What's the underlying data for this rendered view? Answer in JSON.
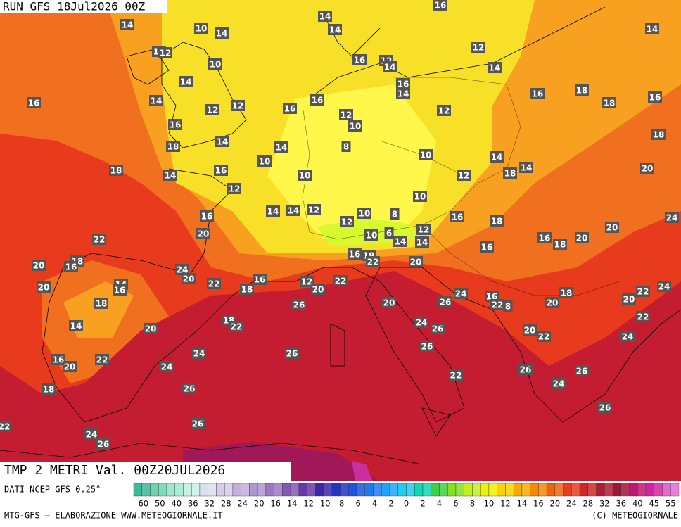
{
  "header": {
    "run": "RUN GFS 18Jul2026 00Z",
    "title": "TMP 2 METRI Val. 00Z20JUL2026",
    "source": "DATI NCEP GFS 0.25°",
    "credit": "MTG-GFS — ELABORAZIONE WWW.METEOGIORNALE.IT",
    "copyright": "(C) METEOGIORNALE"
  },
  "map": {
    "labels": [
      "14",
      "10",
      "14",
      "14",
      "14",
      "16",
      "14",
      "14",
      "12",
      "10",
      "16",
      "12",
      "14",
      "12",
      "14",
      "14",
      "16",
      "14",
      "16",
      "18",
      "16",
      "16",
      "14",
      "16",
      "12",
      "12",
      "16",
      "12",
      "18",
      "12",
      "10",
      "16",
      "18",
      "14",
      "18",
      "14",
      "8",
      "10",
      "14",
      "18",
      "14",
      "16",
      "10",
      "10",
      "12",
      "18",
      "14",
      "20",
      "12",
      "10",
      "14",
      "14",
      "12",
      "10",
      "8",
      "16",
      "18",
      "24",
      "16",
      "12",
      "12",
      "20",
      "20",
      "10",
      "6",
      "16",
      "18",
      "20",
      "22",
      "14",
      "14",
      "16",
      "16",
      "18",
      "22",
      "20",
      "18",
      "16",
      "20",
      "24",
      "20",
      "22",
      "16",
      "12",
      "20",
      "22",
      "18",
      "20",
      "14",
      "16",
      "24",
      "16",
      "18",
      "22",
      "24",
      "26",
      "22",
      "8",
      "20",
      "20",
      "22",
      "18",
      "26",
      "20",
      "18",
      "22",
      "14",
      "24",
      "26",
      "20",
      "20",
      "22",
      "24",
      "26",
      "24",
      "26",
      "16",
      "20",
      "22",
      "24",
      "22",
      "26",
      "26",
      "18",
      "26",
      "24",
      "26",
      "22",
      "26",
      "24",
      "26"
    ]
  },
  "legend": {
    "ticks": [
      "-60",
      "-50",
      "-40",
      "-36",
      "-32",
      "-28",
      "-24",
      "-20",
      "-16",
      "-14",
      "-12",
      "-10",
      "-8",
      "-6",
      "-4",
      "-2",
      "0",
      "2",
      "4",
      "6",
      "8",
      "10",
      "12",
      "14",
      "16",
      "20",
      "24",
      "28",
      "32",
      "36",
      "40",
      "45",
      "55"
    ],
    "colors": [
      "#3cb89a",
      "#6cd4b4",
      "#9ee8d0",
      "#c8f0e4",
      "#d8e0f0",
      "#d8cce8",
      "#c4b0dc",
      "#b096d0",
      "#9c78c4",
      "#8458b4",
      "#6838a8",
      "#3c28a8",
      "#2034c8",
      "#1c54e0",
      "#1c7cf0",
      "#20a4f8",
      "#20ccf0",
      "#10d8b4",
      "#40d040",
      "#84e020",
      "#c4f020",
      "#f0f000",
      "#f8d400",
      "#f8ac00",
      "#f88800",
      "#f06410",
      "#e44020",
      "#d02828",
      "#b81834",
      "#a0143c",
      "#c01870",
      "#d424a4",
      "#e868d4"
    ]
  }
}
